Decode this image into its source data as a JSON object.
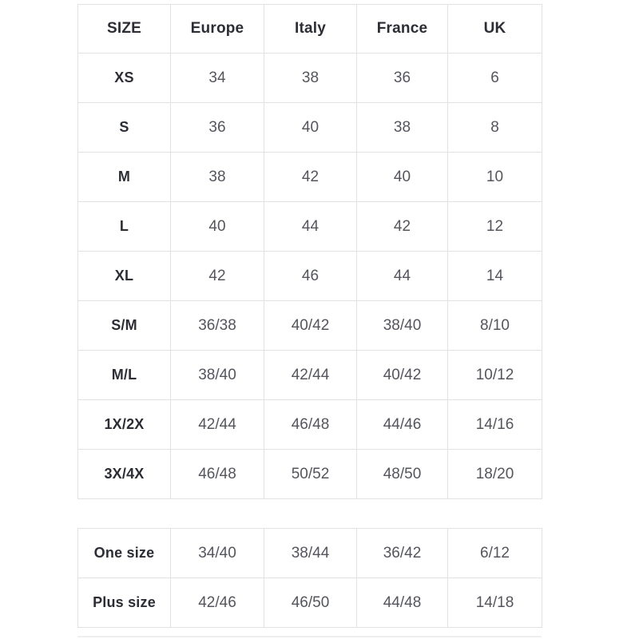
{
  "colors": {
    "background": "#ffffff",
    "table_border": "#e2e2e2",
    "header_text": "#2c2d35",
    "value_text": "#54555d"
  },
  "chart_data": [
    {
      "type": "table",
      "show_header": true,
      "columns": [
        "SIZE",
        "Europe",
        "Italy",
        "France",
        "UK"
      ],
      "rows": [
        [
          "XS",
          "34",
          "38",
          "36",
          "6"
        ],
        [
          "S",
          "36",
          "40",
          "38",
          "8"
        ],
        [
          "M",
          "38",
          "42",
          "40",
          "10"
        ],
        [
          "L",
          "40",
          "44",
          "42",
          "12"
        ],
        [
          "XL",
          "42",
          "46",
          "44",
          "14"
        ],
        [
          "S/M",
          "36/38",
          "40/42",
          "38/40",
          "8/10"
        ],
        [
          "M/L",
          "38/40",
          "42/44",
          "40/42",
          "10/12"
        ],
        [
          "1X/2X",
          "42/44",
          "46/48",
          "44/46",
          "14/16"
        ],
        [
          "3X/4X",
          "46/48",
          "50/52",
          "48/50",
          "18/20"
        ]
      ]
    },
    {
      "type": "table",
      "show_header": false,
      "columns": [
        "SIZE",
        "Europe",
        "Italy",
        "France",
        "UK"
      ],
      "rows": [
        [
          "One size",
          "34/40",
          "38/44",
          "36/42",
          "6/12"
        ],
        [
          "Plus size",
          "42/46",
          "46/50",
          "44/48",
          "14/18"
        ]
      ]
    }
  ]
}
